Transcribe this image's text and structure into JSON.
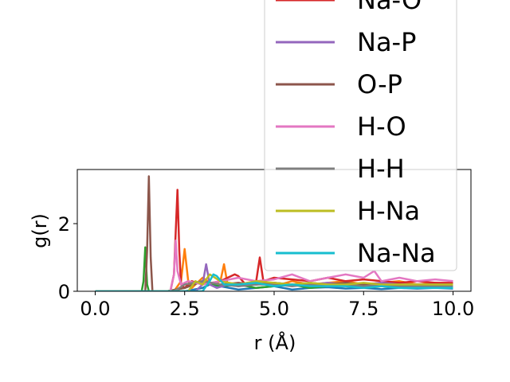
{
  "chart_data": {
    "type": "line",
    "xlabel": "r (Å)",
    "ylabel": "g(r)",
    "xlim": [
      -0.5,
      10.5
    ],
    "ylim": [
      0,
      3.6
    ],
    "xticks": [
      0.0,
      2.5,
      5.0,
      7.5,
      10.0
    ],
    "xtick_labels": [
      "0.0",
      "2.5",
      "5.0",
      "7.5",
      "10.0"
    ],
    "yticks": [
      0,
      2
    ],
    "ytick_labels": [
      "0",
      "2"
    ],
    "grid": false,
    "legend_position": "upper-right (extends beyond top of figure)",
    "series": [
      {
        "name": "",
        "color": "#1f77b4",
        "x": [
          0,
          1.4,
          1.45,
          1.5,
          1.55,
          1.6,
          2.0,
          2.5,
          3.0,
          3.2,
          3.5,
          4.0,
          4.5,
          5.0,
          5.5,
          6.0,
          6.5,
          7.0,
          7.5,
          8.0,
          8.5,
          9.0,
          9.5,
          10.0
        ],
        "y": [
          0,
          0,
          0,
          0,
          0,
          0,
          0,
          0,
          0.1,
          0.2,
          0.15,
          0.05,
          0.1,
          0.15,
          0.05,
          0.1,
          0.12,
          0.08,
          0.1,
          0.06,
          0.1,
          0.08,
          0.1,
          0.08
        ]
      },
      {
        "name": "",
        "color": "#ff7f0e",
        "x": [
          0,
          2.2,
          2.4,
          2.5,
          2.6,
          2.7,
          3.0,
          3.3,
          3.5,
          3.6,
          3.7,
          4.0,
          4.5,
          5.0,
          5.5,
          6.0,
          6.5,
          7.0,
          7.5,
          8.0,
          8.5,
          9.0,
          9.5,
          10.0
        ],
        "y": [
          0,
          0,
          0.3,
          1.25,
          0.3,
          0.1,
          0.4,
          0.2,
          0.3,
          0.8,
          0.2,
          0.2,
          0.3,
          0.15,
          0.3,
          0.2,
          0.25,
          0.3,
          0.2,
          0.25,
          0.3,
          0.2,
          0.25,
          0.2
        ]
      },
      {
        "name": "",
        "color": "#2ca02c",
        "x": [
          0,
          1.3,
          1.35,
          1.4,
          1.45,
          1.5,
          2.0,
          2.5,
          3.0,
          3.5,
          4.0,
          4.5,
          5.0,
          5.5,
          6.0,
          6.5,
          7.0,
          7.5,
          8.0,
          8.5,
          9.0,
          9.5,
          10.0
        ],
        "y": [
          0,
          0,
          0.3,
          1.3,
          0.2,
          0,
          0,
          0.1,
          0.3,
          0.15,
          0.2,
          0.1,
          0.15,
          0.2,
          0.1,
          0.15,
          0.2,
          0.1,
          0.15,
          0.1,
          0.15,
          0.1,
          0.12
        ]
      },
      {
        "name": "Na-O",
        "color": "#d62728",
        "x": [
          0,
          2.1,
          2.2,
          2.3,
          2.35,
          2.4,
          2.5,
          2.7,
          3.0,
          3.5,
          3.9,
          4.0,
          4.2,
          4.5,
          4.6,
          4.7,
          5.0,
          5.5,
          6.0,
          6.5,
          7.0,
          7.5,
          8.0,
          8.5,
          9.0,
          9.5,
          10.0
        ],
        "y": [
          0,
          0,
          0.5,
          3.0,
          1.2,
          0.2,
          0.1,
          0.3,
          0.2,
          0.3,
          0.5,
          0.45,
          0.2,
          0.3,
          1.0,
          0.3,
          0.4,
          0.35,
          0.3,
          0.4,
          0.3,
          0.35,
          0.3,
          0.25,
          0.3,
          0.25,
          0.25
        ]
      },
      {
        "name": "Na-P",
        "color": "#9467bd",
        "x": [
          0,
          2.8,
          3.0,
          3.1,
          3.2,
          3.4,
          3.7,
          4.0,
          4.5,
          5.0,
          5.5,
          6.0,
          6.5,
          7.0,
          7.5,
          8.0,
          8.5,
          9.0,
          9.5,
          10.0
        ],
        "y": [
          0,
          0,
          0.2,
          0.8,
          0.2,
          0.1,
          0.2,
          0.15,
          0.2,
          0.25,
          0.2,
          0.2,
          0.25,
          0.2,
          0.2,
          0.25,
          0.2,
          0.2,
          0.2,
          0.2
        ]
      },
      {
        "name": "O-P",
        "color": "#8c564b",
        "x": [
          0,
          1.4,
          1.45,
          1.5,
          1.55,
          1.6,
          2.0,
          2.5,
          3.0,
          3.5,
          4.0,
          4.5,
          5.0,
          5.5,
          6.0,
          6.5,
          7.0,
          7.5,
          8.0,
          8.5,
          9.0,
          9.5,
          10.0
        ],
        "y": [
          0,
          0,
          1.2,
          3.4,
          1.0,
          0,
          0,
          0.1,
          0.3,
          0.2,
          0.25,
          0.2,
          0.25,
          0.2,
          0.25,
          0.2,
          0.25,
          0.2,
          0.2,
          0.2,
          0.2,
          0.2,
          0.2
        ]
      },
      {
        "name": "H-O",
        "color": "#e377c2",
        "x": [
          0,
          2.1,
          2.2,
          2.25,
          2.3,
          2.4,
          2.6,
          3.0,
          3.5,
          4.0,
          4.5,
          5.0,
          5.5,
          6.0,
          6.5,
          7.0,
          7.5,
          7.8,
          8.0,
          8.5,
          9.0,
          9.5,
          10.0
        ],
        "y": [
          0,
          0,
          0.5,
          1.5,
          0.6,
          0.2,
          0.3,
          0.2,
          0.3,
          0.4,
          0.3,
          0.35,
          0.5,
          0.3,
          0.4,
          0.5,
          0.4,
          0.6,
          0.3,
          0.4,
          0.3,
          0.35,
          0.3
        ]
      },
      {
        "name": "H-H",
        "color": "#7f7f7f",
        "x": [
          0,
          2.2,
          2.5,
          3.0,
          3.5,
          4.0,
          4.5,
          5.0,
          5.5,
          6.0,
          6.5,
          7.0,
          7.5,
          8.0,
          8.5,
          9.0,
          9.5,
          10.0
        ],
        "y": [
          0,
          0,
          0.2,
          0.3,
          0.2,
          0.15,
          0.2,
          0.2,
          0.15,
          0.2,
          0.15,
          0.2,
          0.15,
          0.2,
          0.15,
          0.15,
          0.15,
          0.15
        ]
      },
      {
        "name": "H-Na",
        "color": "#bcbd22",
        "x": [
          0,
          2.6,
          2.8,
          3.0,
          3.2,
          3.5,
          4.0,
          4.5,
          5.0,
          5.5,
          6.0,
          6.5,
          7.0,
          7.5,
          8.0,
          8.5,
          9.0,
          9.5,
          10.0
        ],
        "y": [
          0,
          0,
          0.3,
          0.2,
          0.5,
          0.3,
          0.2,
          0.3,
          0.25,
          0.2,
          0.25,
          0.2,
          0.2,
          0.25,
          0.2,
          0.2,
          0.2,
          0.2,
          0.2
        ]
      },
      {
        "name": "Na-Na",
        "color": "#17becf",
        "x": [
          0,
          3.0,
          3.2,
          3.3,
          3.4,
          3.6,
          4.0,
          4.5,
          5.0,
          5.5,
          6.0,
          6.5,
          7.0,
          7.5,
          8.0,
          8.5,
          9.0,
          9.5,
          10.0
        ],
        "y": [
          0,
          0,
          0.3,
          0.5,
          0.45,
          0.2,
          0.2,
          0.25,
          0.15,
          0.2,
          0.15,
          0.15,
          0.15,
          0.1,
          0.15,
          0.1,
          0.1,
          0.1,
          0.1
        ]
      }
    ]
  }
}
